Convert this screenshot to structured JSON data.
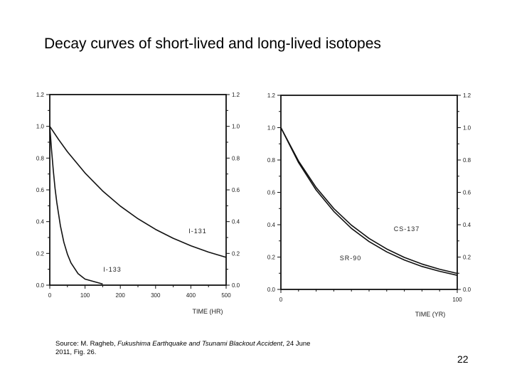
{
  "slide": {
    "title": "Decay curves of short-lived and long-lived isotopes",
    "source_prefix": "Source: M. Ragheb, ",
    "source_italic": "Fukushima Earthquake and Tsunami Blackout Accident",
    "source_suffix": ", 24 June 2011, Fig. 26.",
    "page_number": "22"
  },
  "chart_data": [
    {
      "type": "line",
      "xlabel": "TIME (HR)",
      "ylabel": "",
      "xlim": [
        0,
        500
      ],
      "ylim": [
        0,
        1.2
      ],
      "x_ticks": [
        "0",
        "100",
        "200",
        "300",
        "400",
        "500"
      ],
      "y_ticks": [
        "0.0",
        "0.2",
        "0.4",
        "0.6",
        "0.8",
        "1.0",
        "1.2"
      ],
      "grid": false,
      "series": [
        {
          "name": "I-131",
          "x": [
            0,
            25,
            50,
            100,
            150,
            200,
            250,
            300,
            350,
            400,
            450,
            500
          ],
          "values": [
            1.0,
            0.917,
            0.84,
            0.706,
            0.593,
            0.498,
            0.418,
            0.351,
            0.295,
            0.248,
            0.208,
            0.175
          ]
        },
        {
          "name": "I-133",
          "x": [
            0,
            5,
            10,
            15,
            20,
            30,
            40,
            50,
            60,
            80,
            100,
            150
          ],
          "values": [
            1.0,
            0.85,
            0.72,
            0.61,
            0.52,
            0.375,
            0.27,
            0.195,
            0.14,
            0.073,
            0.038,
            0.007
          ]
        }
      ]
    },
    {
      "type": "line",
      "xlabel": "TIME (YR)",
      "ylabel": "",
      "xlim": [
        0,
        100
      ],
      "ylim": [
        0,
        1.2
      ],
      "x_ticks": [
        "0",
        "100"
      ],
      "y_ticks": [
        "0.0",
        "0.2",
        "0.4",
        "0.6",
        "0.8",
        "1.0",
        "1.2"
      ],
      "grid": false,
      "series": [
        {
          "name": "CS-137",
          "x": [
            0,
            10,
            20,
            30,
            40,
            50,
            60,
            70,
            80,
            90,
            100
          ],
          "values": [
            1.0,
            0.794,
            0.63,
            0.5,
            0.397,
            0.315,
            0.25,
            0.198,
            0.157,
            0.125,
            0.099
          ]
        },
        {
          "name": "SR-90",
          "x": [
            0,
            10,
            20,
            30,
            40,
            50,
            60,
            70,
            80,
            90,
            100
          ],
          "values": [
            1.0,
            0.784,
            0.614,
            0.482,
            0.377,
            0.296,
            0.232,
            0.182,
            0.142,
            0.112,
            0.087
          ]
        }
      ]
    }
  ]
}
